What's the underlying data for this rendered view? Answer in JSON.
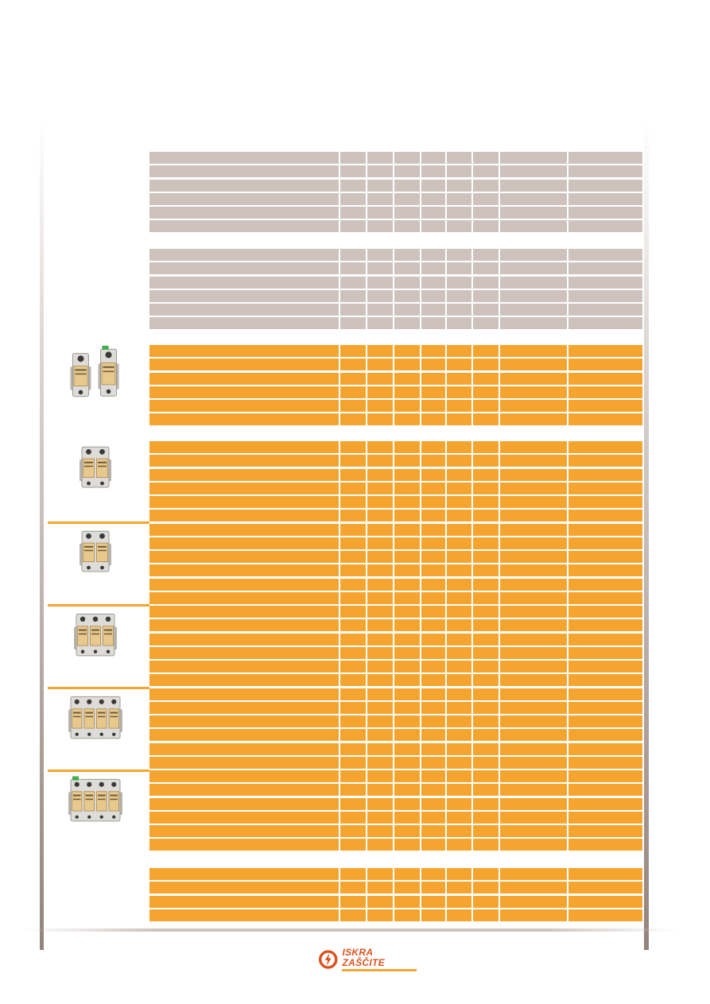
{
  "brand": {
    "name": "ISKRA ZAŠČITE",
    "primary_color": "#d9531e",
    "accent_color": "#f5a52f",
    "header_row_color": "#cdc2bc",
    "logo_icon": "lightning-circle-icon"
  },
  "products": [
    {
      "name": "surge-arrester-1p-double-module",
      "poles": 1,
      "modules": 2,
      "green_tab": true
    },
    {
      "name": "surge-arrester-2p-module",
      "poles": 2,
      "modules": 1,
      "green_tab": false
    },
    {
      "name": "surge-arrester-2p-module-b",
      "poles": 2,
      "modules": 1,
      "green_tab": false
    },
    {
      "name": "surge-arrester-3p-module",
      "poles": 3,
      "modules": 1,
      "green_tab": false
    },
    {
      "name": "surge-arrester-4p-module",
      "poles": 4,
      "modules": 1,
      "green_tab": false
    },
    {
      "name": "surge-arrester-4p-module-green",
      "poles": 4,
      "modules": 1,
      "green_tab": true
    }
  ]
}
